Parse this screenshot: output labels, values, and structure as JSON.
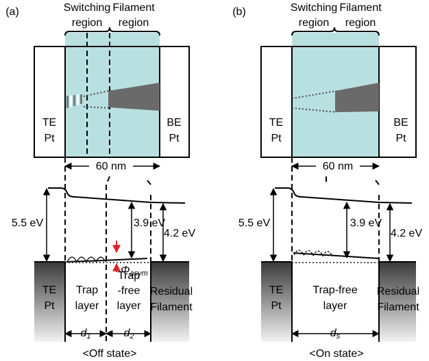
{
  "panels": [
    {
      "tag": "(a)",
      "switching": [
        "Switching",
        "region"
      ],
      "filament": [
        "Filament",
        "region"
      ],
      "te": [
        "TE",
        "Pt"
      ],
      "be": [
        "BE",
        "Pt"
      ],
      "width": "60 nm",
      "e1": "5.5 eV",
      "e2": "3.9 eV",
      "e3": "4.2 eV",
      "phi": {
        "main": "Φ",
        "sub": "asym"
      },
      "te_low": [
        "TE",
        "Pt"
      ],
      "layers": [
        [
          "Trap",
          "layer"
        ],
        [
          "Trap",
          "-free",
          "layer"
        ]
      ],
      "residual": [
        "Residual",
        "Filament"
      ],
      "dims": [
        {
          "main": "d",
          "sub": "1"
        },
        {
          "main": "d",
          "sub": "2"
        }
      ],
      "state": "<Off state>"
    },
    {
      "tag": "(b)",
      "switching": [
        "Switching",
        "region"
      ],
      "filament": [
        "Filament",
        "region"
      ],
      "te": [
        "TE",
        "Pt"
      ],
      "be": [
        "BE",
        "Pt"
      ],
      "width": "60 nm",
      "e1": "5.5 eV",
      "e2": "3.9 eV",
      "e3": "4.2 eV",
      "te_low": [
        "TE",
        "Pt"
      ],
      "layers": [
        [
          "Trap-free",
          "layer"
        ]
      ],
      "residual": [
        "Residual",
        "Filament"
      ],
      "dims": [
        {
          "main": "d",
          "sub": "s"
        }
      ],
      "state": "<On state>"
    }
  ]
}
